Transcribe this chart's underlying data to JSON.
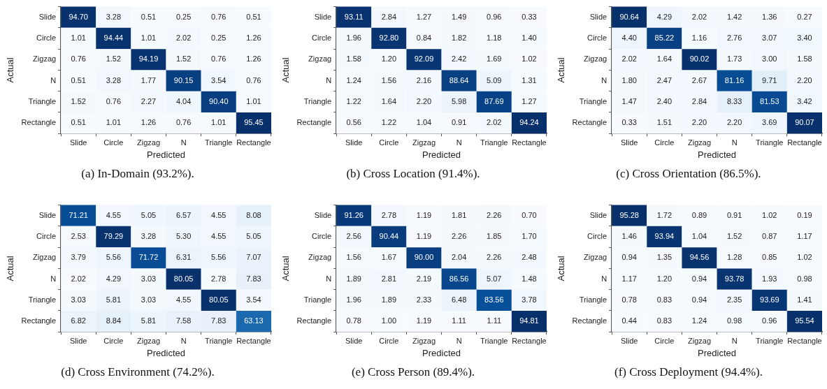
{
  "chart_data": [
    {
      "type": "heatmap",
      "title": "(a)  In-Domain (93.2%).",
      "xlabel": "Predicted",
      "ylabel": "Actual",
      "categories": [
        "Slide",
        "Circle",
        "Zigzag",
        "N",
        "Triangle",
        "Rectangle"
      ],
      "y_categories": [
        "Slide",
        "Circle",
        "Zigzag",
        "N",
        "Triangle",
        "Rectangle"
      ],
      "data_labels": true,
      "cells": [
        [
          94.7,
          3.28,
          0.51,
          0.25,
          0.76,
          0.51
        ],
        [
          1.01,
          94.44,
          1.01,
          2.02,
          0.25,
          1.26
        ],
        [
          0.76,
          1.52,
          94.19,
          1.52,
          0.76,
          1.26
        ],
        [
          0.51,
          3.28,
          1.77,
          90.15,
          3.54,
          0.76
        ],
        [
          1.52,
          0.76,
          2.27,
          4.04,
          90.4,
          1.01
        ],
        [
          0.51,
          1.01,
          1.26,
          0.76,
          1.01,
          95.45
        ]
      ],
      "cell_labels": [
        [
          "94.70",
          "3.28",
          "0.51",
          "0.25",
          "0.76",
          "0.51"
        ],
        [
          "1.01",
          "94.44",
          "1.01",
          "2.02",
          "0.25",
          "1.26"
        ],
        [
          "0.76",
          "1.52",
          "94.19",
          "1.52",
          "0.76",
          "1.26"
        ],
        [
          "0.51",
          "3.28",
          "1.77",
          "90.15",
          "3.54",
          "0.76"
        ],
        [
          "1.52",
          "0.76",
          "2.27",
          "4.04",
          "90.40",
          "1.01"
        ],
        [
          "0.51",
          "1.01",
          "1.26",
          "0.76",
          "1.01",
          "95.45"
        ]
      ]
    },
    {
      "type": "heatmap",
      "title": "(b)  Cross Location (91.4%).",
      "xlabel": "Predicted",
      "ylabel": "Actual",
      "categories": [
        "Slide",
        "Circle",
        "Zigzag",
        "N",
        "Triangle",
        "Rectangle"
      ],
      "y_categories": [
        "Slide",
        "Circle",
        "Zigzag",
        "N",
        "Triangle",
        "Rectangle"
      ],
      "data_labels": true,
      "cells": [
        [
          93.11,
          2.84,
          1.27,
          1.49,
          0.96,
          0.33
        ],
        [
          1.96,
          92.8,
          0.84,
          1.82,
          1.18,
          1.4
        ],
        [
          1.58,
          1.2,
          92.09,
          2.42,
          1.69,
          1.02
        ],
        [
          1.24,
          1.56,
          2.16,
          88.64,
          5.09,
          1.31
        ],
        [
          1.22,
          1.64,
          2.2,
          5.98,
          87.69,
          1.27
        ],
        [
          0.56,
          1.22,
          1.04,
          0.91,
          2.02,
          94.24
        ]
      ],
      "cell_labels": [
        [
          "93.11",
          "2.84",
          "1.27",
          "1.49",
          "0.96",
          "0.33"
        ],
        [
          "1.96",
          "92.80",
          "0.84",
          "1.82",
          "1.18",
          "1.40"
        ],
        [
          "1.58",
          "1.20",
          "92.09",
          "2.42",
          "1.69",
          "1.02"
        ],
        [
          "1.24",
          "1.56",
          "2.16",
          "88.64",
          "5.09",
          "1.31"
        ],
        [
          "1.22",
          "1.64",
          "2.20",
          "5.98",
          "87.69",
          "1.27"
        ],
        [
          "0.56",
          "1.22",
          "1.04",
          "0.91",
          "2.02",
          "94.24"
        ]
      ]
    },
    {
      "type": "heatmap",
      "title": "(c)  Cross Orientation (86.5%).",
      "xlabel": "Predicted",
      "ylabel": "Actual",
      "categories": [
        "Slide",
        "Circle",
        "Zigzag",
        "N",
        "Triangle",
        "Rectangle"
      ],
      "y_categories": [
        "Slide",
        "Circle",
        "Zigzag",
        "N",
        "Triangle",
        "Rectangle"
      ],
      "data_labels": true,
      "cells": [
        [
          90.64,
          4.29,
          2.02,
          1.42,
          1.36,
          0.27
        ],
        [
          4.4,
          85.22,
          1.16,
          2.76,
          3.07,
          3.4
        ],
        [
          2.02,
          1.64,
          90.02,
          1.73,
          3.0,
          1.58
        ],
        [
          1.8,
          2.47,
          2.67,
          81.16,
          9.71,
          2.2
        ],
        [
          1.47,
          2.4,
          2.84,
          8.33,
          81.53,
          3.42
        ],
        [
          0.33,
          1.51,
          2.2,
          2.2,
          3.69,
          90.07
        ]
      ],
      "cell_labels": [
        [
          "90.64",
          "4.29",
          "2.02",
          "1.42",
          "1.36",
          "0.27"
        ],
        [
          "4.40",
          "85.22",
          "1.16",
          "2.76",
          "3.07",
          "3.40"
        ],
        [
          "2.02",
          "1.64",
          "90.02",
          "1.73",
          "3.00",
          "1.58"
        ],
        [
          "1.80",
          "2.47",
          "2.67",
          "81.16",
          "9.71",
          "2.20"
        ],
        [
          "1.47",
          "2.40",
          "2.84",
          "8.33",
          "81.53",
          "3.42"
        ],
        [
          "0.33",
          "1.51",
          "2.20",
          "2.20",
          "3.69",
          "90.07"
        ]
      ]
    },
    {
      "type": "heatmap",
      "title": "(d)  Cross Environment (74.2%).",
      "xlabel": "Predicted",
      "ylabel": "Actual",
      "categories": [
        "Slide",
        "Circle",
        "Zigzag",
        "N",
        "Triangle",
        "Rectangle"
      ],
      "y_categories": [
        "Slide",
        "Circle",
        "Zigzag",
        "N",
        "Triangle",
        "Rectangle"
      ],
      "data_labels": true,
      "cells": [
        [
          71.21,
          4.55,
          5.05,
          6.57,
          4.55,
          8.08
        ],
        [
          2.53,
          79.29,
          3.28,
          5.3,
          4.55,
          5.05
        ],
        [
          3.79,
          5.56,
          71.72,
          6.31,
          5.56,
          7.07
        ],
        [
          2.02,
          4.29,
          3.03,
          80.05,
          2.78,
          7.83
        ],
        [
          3.03,
          5.81,
          3.03,
          4.55,
          80.05,
          3.54
        ],
        [
          6.82,
          8.84,
          5.81,
          7.58,
          7.83,
          63.13
        ]
      ],
      "cell_labels": [
        [
          "71.21",
          "4.55",
          "5.05",
          "6.57",
          "4.55",
          "8.08"
        ],
        [
          "2.53",
          "79.29",
          "3.28",
          "5.30",
          "4.55",
          "5.05"
        ],
        [
          "3.79",
          "5.56",
          "71.72",
          "6.31",
          "5.56",
          "7.07"
        ],
        [
          "2.02",
          "4.29",
          "3.03",
          "80.05",
          "2.78",
          "7.83"
        ],
        [
          "3.03",
          "5.81",
          "3.03",
          "4.55",
          "80.05",
          "3.54"
        ],
        [
          "6.82",
          "8.84",
          "5.81",
          "7.58",
          "7.83",
          "63.13"
        ]
      ]
    },
    {
      "type": "heatmap",
      "title": "(e)  Cross Person (89.4%).",
      "xlabel": "Predicted",
      "ylabel": "Actual",
      "categories": [
        "Slide",
        "Circle",
        "Zigzag",
        "N",
        "Triangle",
        "Rectangle"
      ],
      "y_categories": [
        "Slide",
        "Circle",
        "Zigzag",
        "N",
        "Triangle",
        "Rectangle"
      ],
      "data_labels": true,
      "cells": [
        [
          91.26,
          2.78,
          1.19,
          1.81,
          2.26,
          0.7
        ],
        [
          2.56,
          90.44,
          1.19,
          2.26,
          1.85,
          1.7
        ],
        [
          1.56,
          1.67,
          90.0,
          2.04,
          2.26,
          2.48
        ],
        [
          1.89,
          2.81,
          2.19,
          86.56,
          5.07,
          1.48
        ],
        [
          1.96,
          1.89,
          2.33,
          6.48,
          83.56,
          3.78
        ],
        [
          0.78,
          1.0,
          1.19,
          1.11,
          1.11,
          94.81
        ]
      ],
      "cell_labels": [
        [
          "91.26",
          "2.78",
          "1.19",
          "1.81",
          "2.26",
          "0.70"
        ],
        [
          "2.56",
          "90.44",
          "1.19",
          "2.26",
          "1.85",
          "1.70"
        ],
        [
          "1.56",
          "1.67",
          "90.00",
          "2.04",
          "2.26",
          "2.48"
        ],
        [
          "1.89",
          "2.81",
          "2.19",
          "86.56",
          "5.07",
          "1.48"
        ],
        [
          "1.96",
          "1.89",
          "2.33",
          "6.48",
          "83.56",
          "3.78"
        ],
        [
          "0.78",
          "1.00",
          "1.19",
          "1.11",
          "1.11",
          "94.81"
        ]
      ]
    },
    {
      "type": "heatmap",
      "title": "(f)  Cross Deployment (94.4%).",
      "xlabel": "Predicted",
      "ylabel": "Actual",
      "categories": [
        "Slide",
        "Circle",
        "Zigzag",
        "N",
        "Triangle",
        "Rectangle"
      ],
      "y_categories": [
        "Slide",
        "Circle",
        "Zigzag",
        "N",
        "Triangle",
        "Rectangle"
      ],
      "data_labels": true,
      "cells": [
        [
          95.28,
          1.72,
          0.89,
          0.91,
          1.02,
          0.19
        ],
        [
          1.46,
          93.94,
          1.04,
          1.52,
          0.87,
          1.17
        ],
        [
          0.94,
          1.35,
          94.56,
          1.28,
          0.85,
          1.02
        ],
        [
          1.17,
          1.2,
          0.94,
          93.78,
          1.93,
          0.98
        ],
        [
          0.78,
          0.83,
          0.94,
          2.35,
          93.69,
          1.41
        ],
        [
          0.44,
          0.83,
          1.24,
          0.98,
          0.96,
          95.54
        ]
      ],
      "cell_labels": [
        [
          "95.28",
          "1.72",
          "0.89",
          "0.91",
          "1.02",
          "0.19"
        ],
        [
          "1.46",
          "93.94",
          "1.04",
          "1.52",
          "0.87",
          "1.17"
        ],
        [
          "0.94",
          "1.35",
          "94.56",
          "1.28",
          "0.85",
          "1.02"
        ],
        [
          "1.17",
          "1.20",
          "0.94",
          "93.78",
          "1.93",
          "0.98"
        ],
        [
          "0.78",
          "0.83",
          "0.94",
          "2.35",
          "93.69",
          "1.41"
        ],
        [
          "0.44",
          "0.83",
          "1.24",
          "0.98",
          "0.96",
          "95.54"
        ]
      ]
    }
  ]
}
